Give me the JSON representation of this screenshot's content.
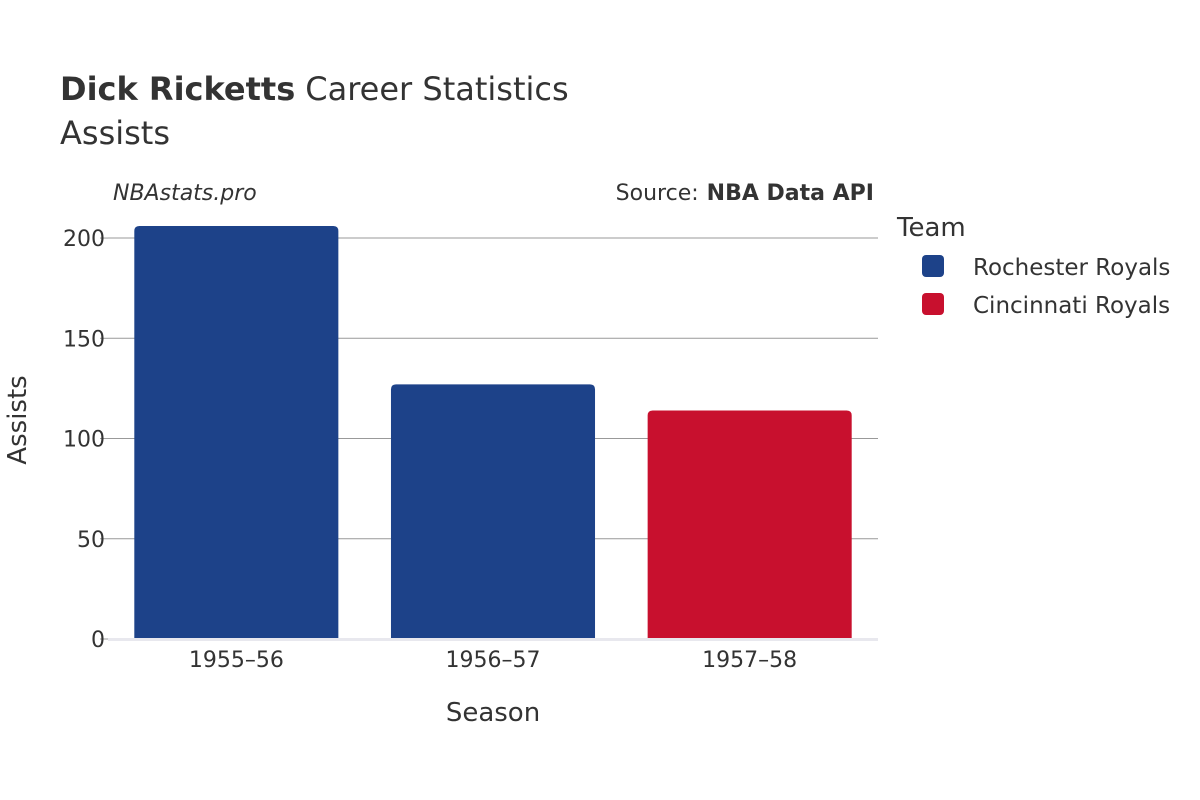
{
  "chart_data": {
    "type": "bar",
    "title": {
      "player": "Dick Ricketts",
      "rest": "Career Statistics",
      "subtitle": "Assists"
    },
    "watermark": "NBAstats.pro",
    "source": {
      "label": "Source:",
      "value": "NBA Data API"
    },
    "xlabel": "Season",
    "ylabel": "Assists",
    "ylim": [
      0,
      210
    ],
    "yticks": [
      0,
      50,
      100,
      150,
      200
    ],
    "categories": [
      "1955–56",
      "1956–57",
      "1957–58"
    ],
    "bars": [
      {
        "category": "1955–56",
        "team": "Rochester Royals",
        "value": 206
      },
      {
        "category": "1956–57",
        "team": "Rochester Royals",
        "value": 127
      },
      {
        "category": "1957–58",
        "team": "Cincinnati Royals",
        "value": 114
      }
    ],
    "legend": {
      "title": "Team",
      "position": "top-right",
      "items": [
        {
          "name": "Rochester Royals",
          "color": "#1d4289"
        },
        {
          "name": "Cincinnati Royals",
          "color": "#c8102e"
        }
      ]
    }
  }
}
